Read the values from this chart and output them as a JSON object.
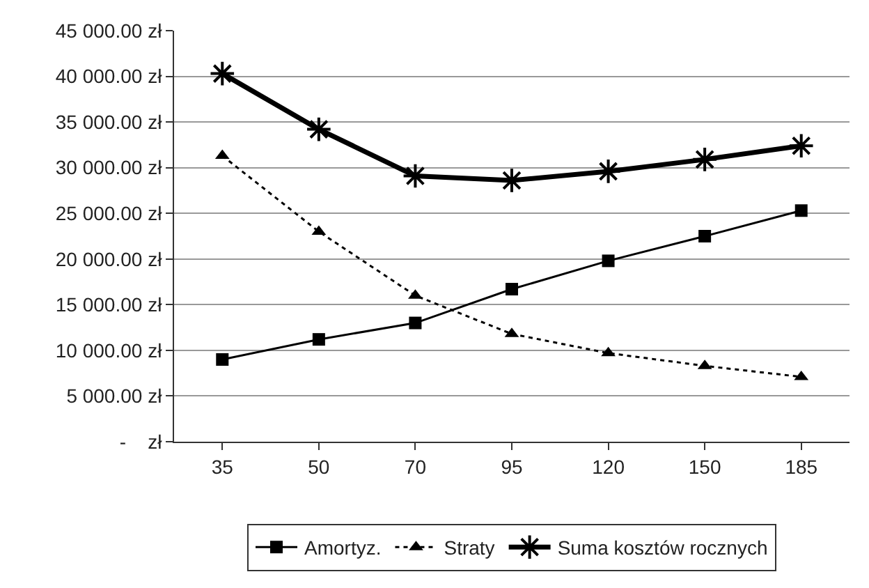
{
  "chart_data": {
    "type": "line",
    "categories": [
      "35",
      "50",
      "70",
      "95",
      "120",
      "150",
      "185"
    ],
    "series": [
      {
        "name": "Amortyz.",
        "color": "#000000",
        "marker": "square",
        "line_style": "solid",
        "values": [
          9000,
          11200,
          13000,
          16700,
          19800,
          22500,
          25300
        ]
      },
      {
        "name": "Straty",
        "color": "#000000",
        "marker": "triangle",
        "line_style": "dotted",
        "values": [
          31300,
          23000,
          16000,
          11800,
          9700,
          8300,
          7100
        ]
      },
      {
        "name": "Suma kosztów rocznych",
        "color": "#000000",
        "marker": "cross",
        "line_style": "solid",
        "values": [
          40300,
          34200,
          29100,
          28600,
          29600,
          30900,
          32400
        ]
      }
    ],
    "ylim": [
      0,
      45000
    ],
    "yticks": [
      {
        "value": 0,
        "label": "-    zł"
      },
      {
        "value": 5000,
        "label": "5 000.00 zł"
      },
      {
        "value": 10000,
        "label": "10 000.00 zł"
      },
      {
        "value": 15000,
        "label": "15 000.00 zł"
      },
      {
        "value": 20000,
        "label": "20 000.00 zł"
      },
      {
        "value": 25000,
        "label": "25 000.00 zł"
      },
      {
        "value": 30000,
        "label": "30 000.00 zł"
      },
      {
        "value": 35000,
        "label": "35 000.00 zł"
      },
      {
        "value": 40000,
        "label": "40 000.00 zł"
      },
      {
        "value": 45000,
        "label": "45 000.00 zł"
      }
    ],
    "grid": "y",
    "legend": "bottom"
  }
}
